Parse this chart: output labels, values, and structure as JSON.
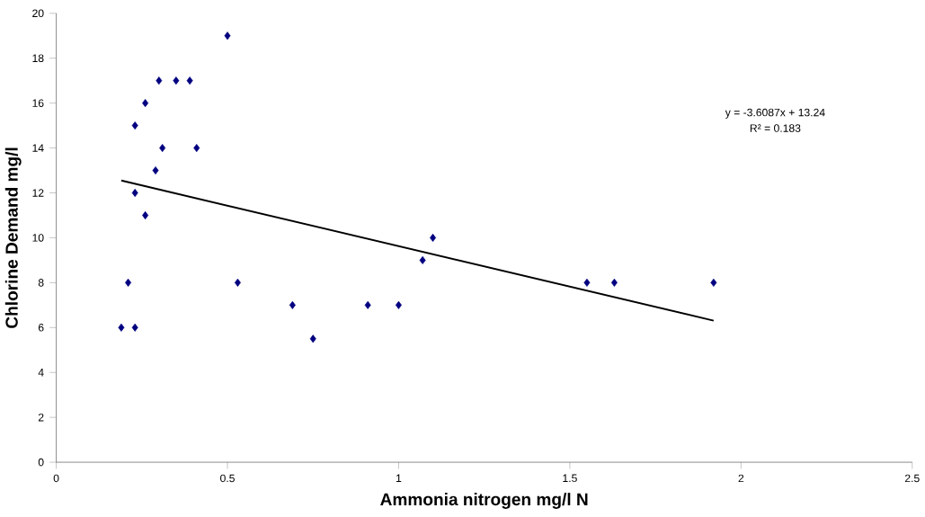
{
  "chart_data": {
    "type": "scatter",
    "xlabel": "Ammonia nitrogen mg/l N",
    "ylabel": "Chlorine Demand mg/l",
    "series": [
      {
        "color": "#000080",
        "marker": "diamond",
        "x": [
          0.19,
          0.21,
          0.23,
          0.23,
          0.23,
          0.26,
          0.26,
          0.29,
          0.3,
          0.31,
          0.35,
          0.39,
          0.41,
          0.5,
          0.53,
          0.69,
          0.75,
          0.91,
          1.0,
          1.07,
          1.1,
          1.55,
          1.63,
          1.92
        ],
        "values": [
          6,
          8,
          6,
          12,
          15,
          11,
          16,
          13,
          17,
          14,
          17,
          17,
          14,
          19,
          8,
          7,
          5.5,
          7,
          7,
          9,
          10,
          8,
          8,
          8
        ]
      },
      {
        "type": "line",
        "color": "#000000",
        "marker": "none",
        "x": [
          0.19,
          1.92
        ],
        "values": [
          12.55,
          6.31
        ]
      }
    ],
    "annotations": [
      "y = -3.6087x + 13.24",
      "R² = 0.183"
    ],
    "xlim": [
      0,
      2.5
    ],
    "xticks": [
      0,
      0.5,
      1,
      1.5,
      2,
      2.5
    ],
    "ylim": [
      0,
      20
    ],
    "yticks": [
      0,
      2,
      4,
      6,
      8,
      10,
      12,
      14,
      16,
      18,
      20
    ]
  }
}
